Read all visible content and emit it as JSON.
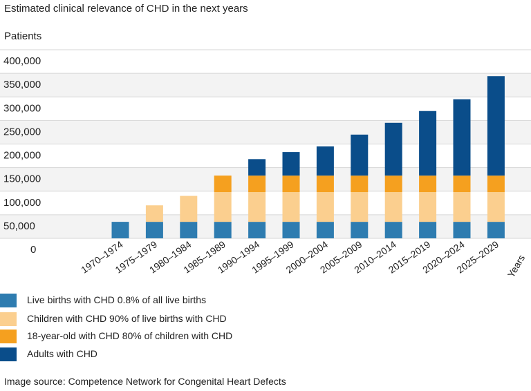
{
  "header": {
    "title": "Estimated clinical relevance of CHD in the next years"
  },
  "chart_data": {
    "type": "bar",
    "stacked": true,
    "title": "Estimated clinical relevance of CHD in the next years",
    "ylabel": "Patients",
    "xlabel": "Years",
    "ylim": [
      0,
      400000
    ],
    "yticks": [
      0,
      50000,
      100000,
      150000,
      200000,
      250000,
      300000,
      350000,
      400000
    ],
    "ytick_labels": [
      "0",
      "50,000",
      "100,000",
      "150,000",
      "200,000",
      "250,000",
      "300,000",
      "350,000",
      "400,000"
    ],
    "grid": true,
    "legend_position": "bottom-left",
    "categories": [
      "1970–1974",
      "1975–1979",
      "1980–1984",
      "1985–1989",
      "1990–1994",
      "1995–1999",
      "2000–2004",
      "2005–2009",
      "2010–2014",
      "2015–2019",
      "2020–2024",
      "2025–2029"
    ],
    "series": [
      {
        "name": "Live births with CHD 0.8% of all live births",
        "color": "#2e7cb0",
        "values": [
          35000,
          35000,
          35000,
          35000,
          35000,
          35000,
          35000,
          35000,
          35000,
          35000,
          35000,
          35000
        ]
      },
      {
        "name": "Children with CHD 90% of live births with CHD",
        "color": "#fbcf8f",
        "values": [
          0,
          35000,
          55000,
          63000,
          63000,
          63000,
          63000,
          63000,
          63000,
          63000,
          63000,
          63000
        ]
      },
      {
        "name": "18-year-old with CHD 80% of children with CHD",
        "color": "#f5a01f",
        "values": [
          0,
          0,
          0,
          35000,
          35000,
          35000,
          35000,
          35000,
          35000,
          35000,
          35000,
          35000
        ]
      },
      {
        "name": "Adults with CHD",
        "color": "#0a4d8a",
        "values": [
          0,
          0,
          0,
          0,
          35000,
          50000,
          62000,
          87000,
          112000,
          137000,
          162000,
          211000
        ]
      }
    ]
  },
  "footer": {
    "source": "Image source: Competence Network for Congenital Heart Defects"
  }
}
